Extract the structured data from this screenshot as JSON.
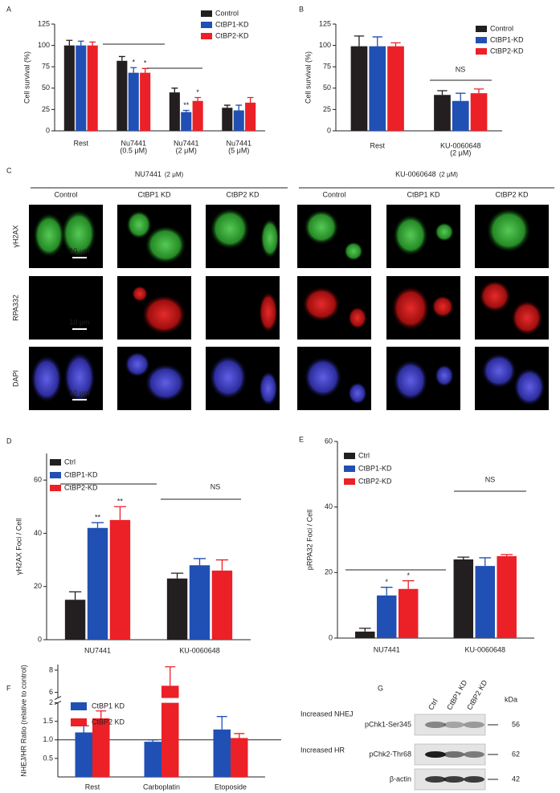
{
  "panel_labels": [
    "A",
    "B",
    "C",
    "D",
    "E",
    "F",
    "G"
  ],
  "chart_data": [
    {
      "type": "bar",
      "ylabel": "Cell survival (%)",
      "categories": [
        "Rest",
        "Nu7441",
        "Nu7441",
        "Nu7441"
      ],
      "category_sublabels": [
        null,
        "(0.5 μM)",
        "(2 μM)",
        "(5 μM)"
      ],
      "ylim": [
        0,
        125
      ],
      "yticks": [
        0,
        25,
        50,
        75,
        100,
        125
      ],
      "series": [
        {
          "name": "Control",
          "color": "#231f20",
          "values": [
            100,
            82,
            45,
            27
          ],
          "errors": [
            6,
            5,
            5,
            3
          ]
        },
        {
          "name": "CtBP1-KD",
          "color": "#2150b4",
          "values": [
            100,
            68,
            22,
            24
          ],
          "errors": [
            5,
            6,
            2,
            6
          ],
          "significance": [
            null,
            "*",
            "**",
            null
          ]
        },
        {
          "name": "CtBP2-KD",
          "color": "#ec2027",
          "values": [
            100,
            68,
            35,
            33
          ],
          "errors": [
            4,
            5,
            4,
            6
          ],
          "significance": [
            null,
            "*",
            "*",
            null
          ]
        }
      ]
    },
    {
      "type": "bar",
      "ylabel": "Cell survival (%)",
      "categories": [
        "Rest",
        "KU-0060648"
      ],
      "category_sublabels": [
        null,
        "(2 μM)"
      ],
      "ylim": [
        0,
        125
      ],
      "yticks": [
        0,
        25,
        50,
        75,
        100,
        125
      ],
      "series": [
        {
          "name": "Control",
          "color": "#231f20",
          "values": [
            99,
            42
          ],
          "errors": [
            12,
            5
          ]
        },
        {
          "name": "CtBP1-KD",
          "color": "#2150b4",
          "values": [
            99,
            35
          ],
          "errors": [
            11,
            9
          ]
        },
        {
          "name": "CtBP2-KD",
          "color": "#ec2027",
          "values": [
            99,
            44
          ],
          "errors": [
            4,
            5
          ]
        }
      ],
      "annotations": [
        "NS"
      ]
    },
    {
      "type": "bar",
      "ylabel": "γH2AX Foci / Cell",
      "categories": [
        "NU7441",
        "KU-0060648"
      ],
      "ylim": [
        0,
        70
      ],
      "yticks": [
        0,
        20,
        40,
        60
      ],
      "series": [
        {
          "name": "Ctrl",
          "color": "#231f20",
          "values": [
            15,
            23
          ],
          "errors": [
            3,
            2
          ]
        },
        {
          "name": "CtBP1-KD",
          "color": "#2150b4",
          "values": [
            42,
            28
          ],
          "errors": [
            2,
            2.5
          ],
          "significance": [
            "**",
            null
          ]
        },
        {
          "name": "CtBP2-KD",
          "color": "#ec2027",
          "values": [
            45,
            26
          ],
          "errors": [
            5,
            4
          ],
          "significance": [
            "**",
            null
          ]
        }
      ],
      "annotations": [
        "NS"
      ]
    },
    {
      "type": "bar",
      "ylabel": "pRPA32 Foci / Cell",
      "categories": [
        "NU7441",
        "KU-0060648"
      ],
      "ylim": [
        0,
        60
      ],
      "yticks": [
        0,
        20,
        40,
        60
      ],
      "series": [
        {
          "name": "Ctrl",
          "color": "#231f20",
          "values": [
            2,
            24
          ],
          "errors": [
            1,
            0.7
          ]
        },
        {
          "name": "CtBP1-KD",
          "color": "#2150b4",
          "values": [
            13,
            22
          ],
          "errors": [
            2.5,
            2.5
          ],
          "significance": [
            "*",
            null
          ]
        },
        {
          "name": "CtBP2-KD",
          "color": "#ec2027",
          "values": [
            15,
            25
          ],
          "errors": [
            2.5,
            0.5
          ],
          "significance": [
            "*",
            null
          ]
        }
      ],
      "annotations": [
        "NS"
      ]
    },
    {
      "type": "bar",
      "ylabel": "NHEJ/HR Ratio (relative to control)",
      "categories": [
        "Rest",
        "Carboplatin",
        "Etoposide"
      ],
      "ylim": [
        0,
        8.5
      ],
      "axis_break": [
        2,
        5.5
      ],
      "yticks": [
        0.5,
        {
          "value": 1,
          "label": "1.0"
        },
        1.5,
        2,
        6,
        8
      ],
      "reference_line": 1,
      "series": [
        {
          "name": "CtBP1 KD",
          "color": "#2150b4",
          "values": [
            1.2,
            0.95,
            1.28
          ],
          "errors": [
            0.18,
            0.05,
            0.35
          ]
        },
        {
          "name": "CtBP2 KD",
          "color": "#ec2027",
          "values": [
            1.58,
            6.6,
            1.05
          ],
          "errors": [
            0.2,
            1.7,
            0.12
          ]
        }
      ],
      "annotations": [
        "Increased NHEJ",
        "Increased HR"
      ]
    }
  ],
  "microscopy": {
    "treatments": [
      {
        "name": "NU7441",
        "dose": "(2 μM)"
      },
      {
        "name": "KU-0060648",
        "dose": "(2 μM)"
      }
    ],
    "columns": [
      "Control",
      "CtBP1 KD",
      "CtBP2 KD",
      "Control",
      "CtBP1 KD",
      "CtBP2 KD"
    ],
    "rows": [
      "γH2AX",
      "RPA332",
      "DAPI"
    ],
    "scale_bar": "10 μm"
  },
  "western_blot": {
    "lanes": [
      "Ctrl",
      "CtBP1 KD",
      "CtBP2 KD"
    ],
    "rows": [
      {
        "label": "pChk1-Ser345",
        "kda": "56"
      },
      {
        "label": "pChk2-Thr68",
        "kda": "62"
      },
      {
        "label": "β-actin",
        "kda": "42"
      }
    ],
    "unit": "kDa"
  }
}
